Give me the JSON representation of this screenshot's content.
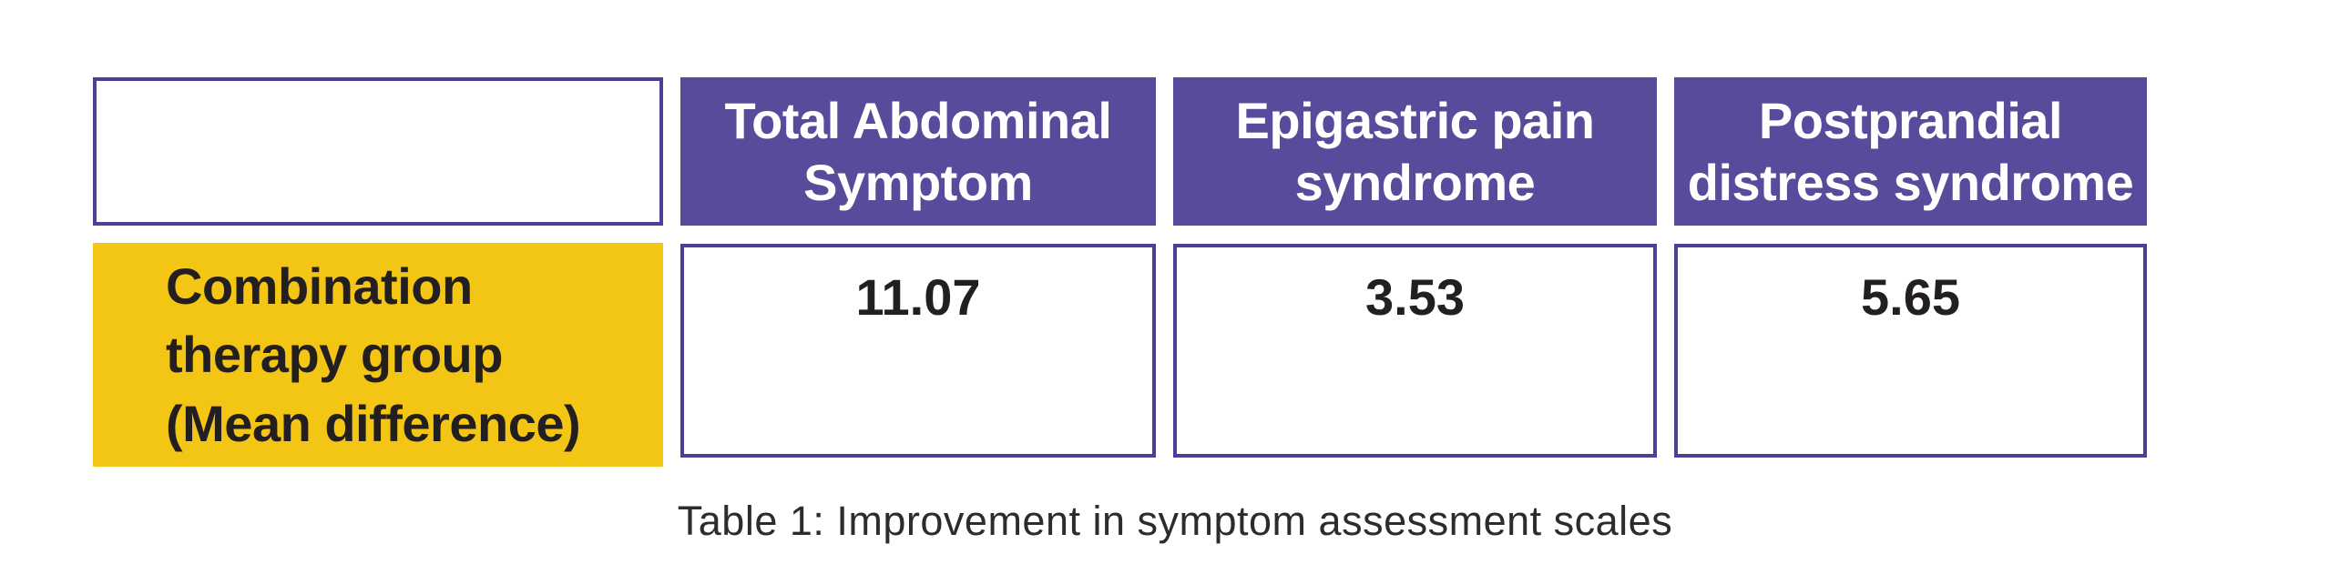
{
  "figure": {
    "caption": "Table 1: Improvement in symptom assessment scales"
  },
  "table": {
    "corner_cell": "",
    "columns": [
      "Total Abdominal Symptom",
      "Epigastric pain syndrome",
      "Postprandial distress syndrome"
    ],
    "row_label": "Combination therapy group (Mean difference)",
    "values": [
      "11.07",
      "3.53",
      "5.65"
    ]
  },
  "colors": {
    "header_fill": "#594a9b",
    "cell_border": "#4c3f94",
    "row_label_fill": "#f3c515",
    "header_text": "#ffffff",
    "body_text": "#231f20",
    "background": "#ffffff"
  },
  "chart_data": {
    "type": "table",
    "title": "Table 1: Improvement in symptom assessment scales",
    "columns": [
      "",
      "Total Abdominal Symptom",
      "Epigastric pain syndrome",
      "Postprandial distress syndrome"
    ],
    "rows": [
      {
        "label": "Combination therapy group (Mean difference)",
        "values": [
          11.07,
          3.53,
          5.65
        ]
      }
    ]
  }
}
